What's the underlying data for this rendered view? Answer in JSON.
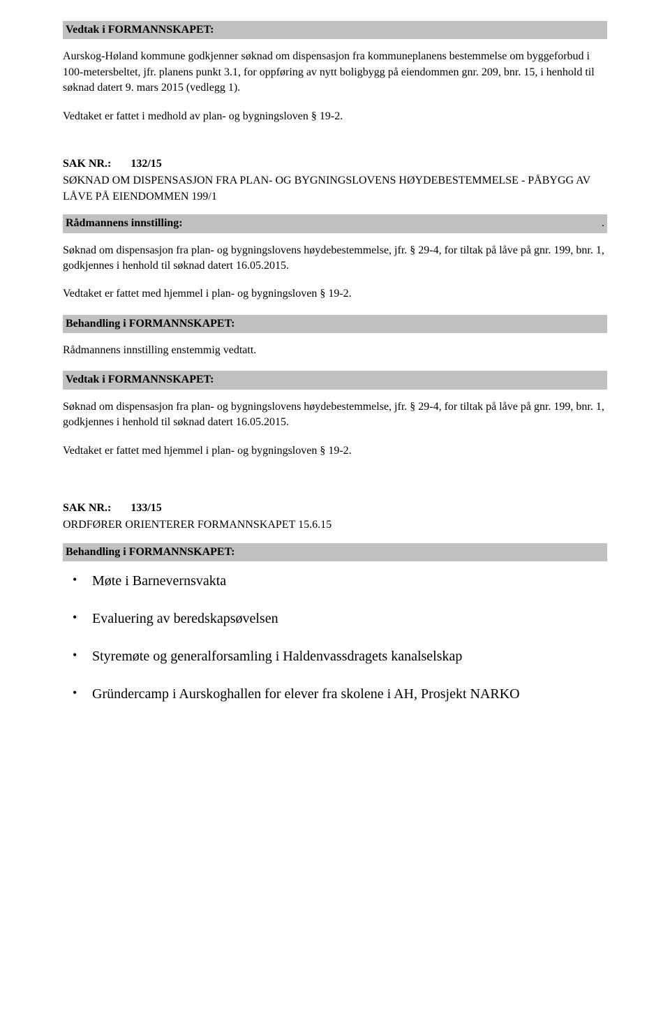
{
  "vedtak1": {
    "header": "Vedtak i FORMANNSKAPET:",
    "p1": "Aurskog-Høland kommune godkjenner søknad om dispensasjon fra kommuneplanens bestemmelse om byggeforbud i 100-metersbeltet, jfr. planens punkt 3.1, for oppføring av nytt boligbygg på eiendommen gnr. 209, bnr. 15, i henhold til søknad datert 9. mars 2015 (vedlegg 1).",
    "p2": "Vedtaket er fattet i medhold av plan- og bygningsloven § 19-2."
  },
  "sak132": {
    "label": "SAK NR.:",
    "num": "132/15",
    "title": "SØKNAD OM DISPENSASJON FRA PLAN- OG BYGNINGSLOVENS HØYDEBESTEMMELSE - PÅBYGG AV LÅVE PÅ EIENDOMMEN 199/1",
    "innstilling_header": "Rådmannens innstilling:",
    "trailing_dot": ".",
    "p1": "Søknad om dispensasjon fra plan- og bygningslovens høydebestemmelse, jfr. § 29-4, for tiltak på låve på gnr. 199, bnr. 1, godkjennes i henhold til søknad datert 16.05.2015.",
    "p2": "Vedtaket er fattet med hjemmel i plan- og bygningsloven § 19-2.",
    "behandling_header": "Behandling i FORMANNSKAPET:",
    "behandling_text": "Rådmannens innstilling enstemmig vedtatt.",
    "vedtak_header": "Vedtak i FORMANNSKAPET:",
    "v_p1": "Søknad om dispensasjon fra plan- og bygningslovens høydebestemmelse, jfr. § 29-4, for tiltak på låve på gnr. 199, bnr. 1, godkjennes i henhold til søknad datert 16.05.2015.",
    "v_p2": "Vedtaket er fattet med hjemmel i plan- og bygningsloven § 19-2."
  },
  "sak133": {
    "label": "SAK NR.:",
    "num": "133/15",
    "title": "ORDFØRER ORIENTERER FORMANNSKAPET 15.6.15",
    "behandling_header": "Behandling i FORMANNSKAPET:",
    "bullets": [
      "Møte i Barnevernsvakta",
      "Evaluering av beredskapsøvelsen",
      "Styremøte og generalforsamling i Haldenvassdragets kanalselskap",
      "Gründercamp i Aurskoghallen for elever fra skolene i AH, Prosjekt NARKO"
    ]
  }
}
